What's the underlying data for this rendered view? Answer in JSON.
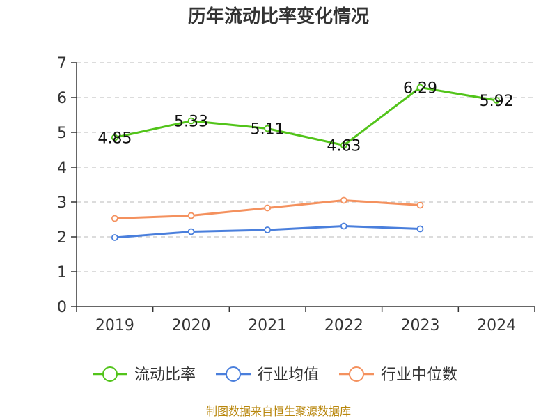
{
  "chart_data": {
    "type": "line",
    "title": "历年流动比率变化情况",
    "categories": [
      "2019",
      "2020",
      "2021",
      "2022",
      "2023",
      "2024"
    ],
    "ylim": [
      0,
      7
    ],
    "yticks": [
      0,
      1,
      2,
      3,
      4,
      5,
      6,
      7
    ],
    "grid": true,
    "legend_position": "bottom",
    "series": [
      {
        "name": "流动比率",
        "color": "#52c41a",
        "values": [
          4.85,
          5.33,
          5.11,
          4.63,
          6.29,
          5.92
        ],
        "labels": [
          "4.85",
          "5.33",
          "5.11",
          "4.63",
          "6.29",
          "5.92"
        ],
        "show_labels": true
      },
      {
        "name": "行业均值",
        "color": "#4a7fdc",
        "values": [
          1.98,
          2.15,
          2.2,
          2.31,
          2.23,
          null
        ],
        "show_labels": false
      },
      {
        "name": "行业中位数",
        "color": "#f4915e",
        "values": [
          2.53,
          2.61,
          2.83,
          3.05,
          2.91,
          null
        ],
        "show_labels": false
      }
    ]
  },
  "footer": "制图数据来自恒生聚源数据库"
}
